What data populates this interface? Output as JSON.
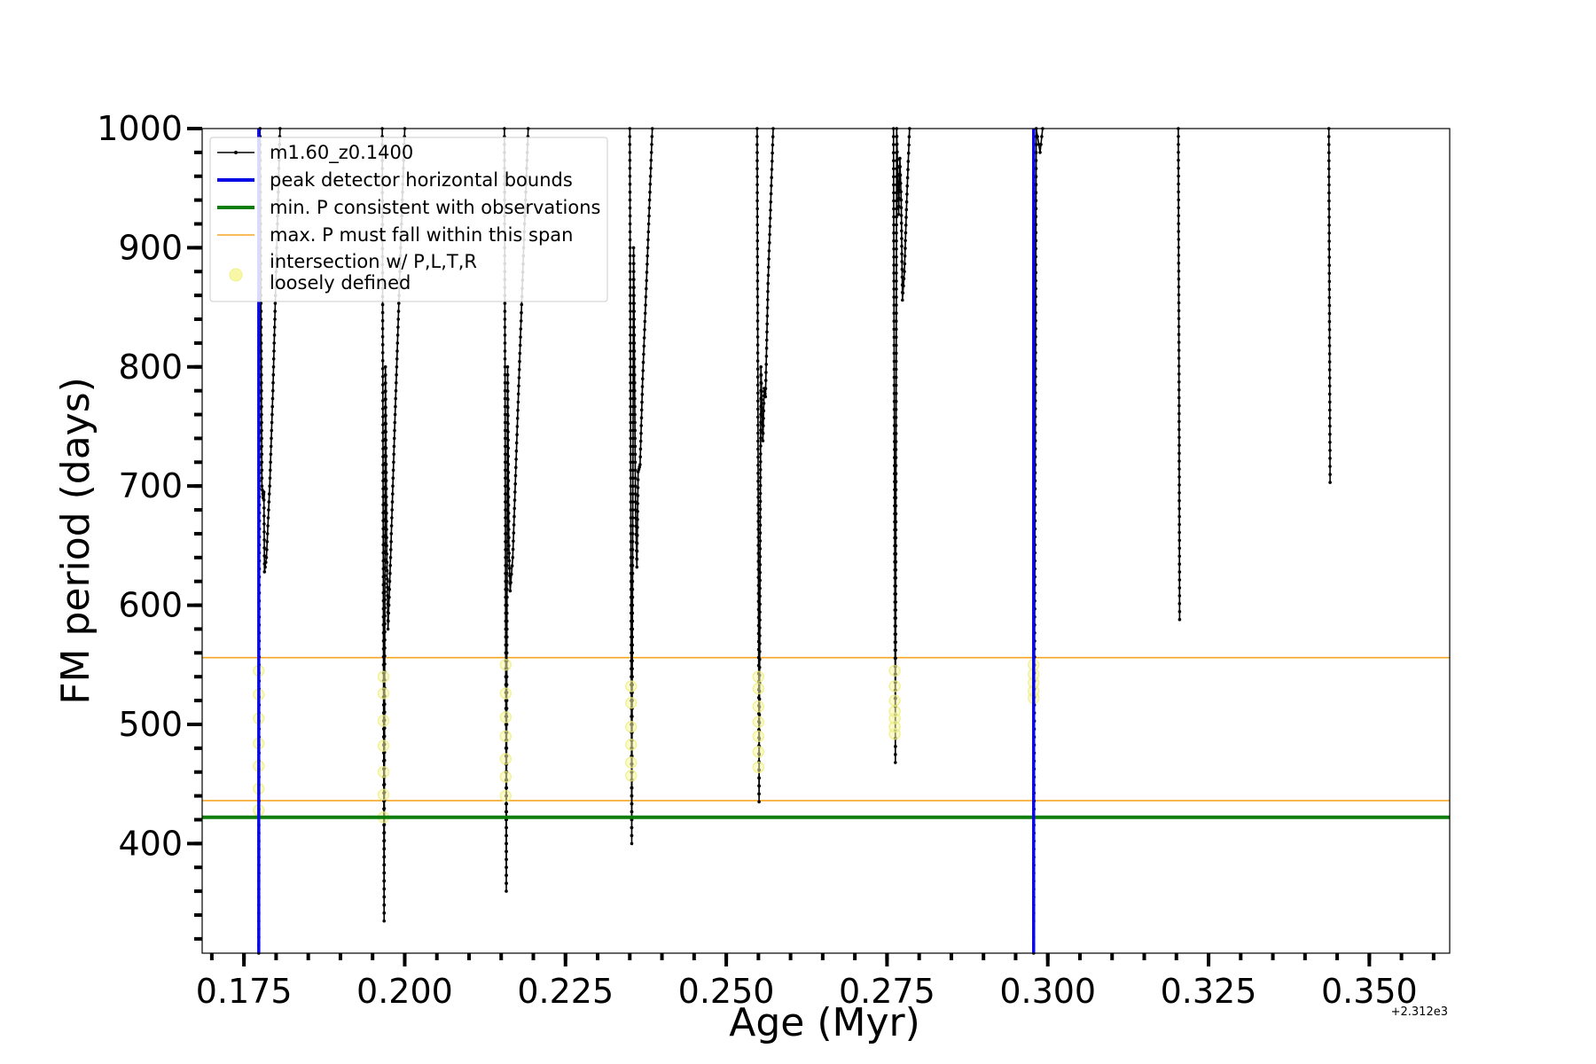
{
  "chart_data": {
    "type": "line",
    "xlabel": "Age (Myr)",
    "ylabel": "FM period (days)",
    "x_offset_label": "+2.312e3",
    "xlim": [
      0.1685,
      0.3625
    ],
    "ylim": [
      308,
      1000
    ],
    "x_ticks": [
      0.175,
      0.2,
      0.225,
      0.25,
      0.275,
      0.3,
      0.325,
      0.35
    ],
    "x_tick_labels": [
      "0.175",
      "0.200",
      "0.225",
      "0.250",
      "0.275",
      "0.300",
      "0.325",
      "0.350"
    ],
    "y_ticks": [
      400,
      500,
      600,
      700,
      800,
      900,
      1000
    ],
    "y_tick_labels": [
      "400",
      "500",
      "600",
      "700",
      "800",
      "900",
      "1000"
    ],
    "grid": false,
    "legend_position": "top-left",
    "legend": [
      {
        "label": "m1.60_z0.1400",
        "kind": "line-marker",
        "color": "#000000"
      },
      {
        "label": "peak detector horizontal bounds",
        "kind": "line",
        "color": "#0a0ae6"
      },
      {
        "label": "min. P consistent with observations",
        "kind": "line",
        "color": "#0a7d0a"
      },
      {
        "label": "max. P must fall within this span",
        "kind": "thin-line",
        "color": "#f5a623"
      },
      {
        "label": "intersection w/ P,L,T,R\nloosely defined",
        "kind": "circle",
        "color": "#f7f7a6"
      }
    ],
    "vertical_lines": {
      "color": "#0a0ae6",
      "x": [
        0.1773,
        0.2978
      ]
    },
    "min_period_line": {
      "color": "#0a7d0a",
      "y": 422
    },
    "max_period_span": {
      "color": "#f5a623",
      "y": [
        436,
        556
      ]
    },
    "series": [
      {
        "name": "m1.60_z0.1400",
        "color": "#000000",
        "segments": [
          [
            [
              0.1773,
              308
            ],
            [
              0.1775,
              1000
            ],
            [
              0.1778,
              700
            ],
            [
              0.178,
              690
            ],
            [
              0.1781,
              695
            ],
            [
              0.1782,
              628
            ],
            [
              0.1785,
              640
            ],
            [
              0.179,
              700
            ],
            [
              0.1795,
              780
            ],
            [
              0.18,
              880
            ],
            [
              0.1806,
              1000
            ]
          ],
          [
            [
              0.1965,
              1000
            ],
            [
              0.1968,
              335
            ],
            [
              0.197,
              800
            ],
            [
              0.1972,
              650
            ],
            [
              0.1974,
              580
            ],
            [
              0.1978,
              640
            ],
            [
              0.1985,
              760
            ],
            [
              0.1995,
              920
            ],
            [
              0.2,
              1000
            ]
          ],
          [
            [
              0.2155,
              1000
            ],
            [
              0.2158,
              360
            ],
            [
              0.216,
              800
            ],
            [
              0.2162,
              650
            ],
            [
              0.2164,
              612
            ],
            [
              0.2168,
              640
            ],
            [
              0.2175,
              750
            ],
            [
              0.2185,
              900
            ],
            [
              0.2192,
              1000
            ]
          ],
          [
            [
              0.235,
              1000
            ],
            [
              0.2353,
              400
            ],
            [
              0.2356,
              900
            ],
            [
              0.2359,
              680
            ],
            [
              0.2361,
              632
            ],
            [
              0.2363,
              712
            ],
            [
              0.2366,
              718
            ],
            [
              0.237,
              790
            ],
            [
              0.2378,
              900
            ],
            [
              0.2385,
              1000
            ]
          ],
          [
            [
              0.2548,
              1000
            ],
            [
              0.2551,
              435
            ],
            [
              0.2554,
              800
            ],
            [
              0.2557,
              738
            ],
            [
              0.2559,
              782
            ],
            [
              0.2561,
              775
            ],
            [
              0.2565,
              870
            ],
            [
              0.2573,
              1000
            ]
          ],
          [
            [
              0.276,
              1000
            ],
            [
              0.2763,
              468
            ],
            [
              0.2765,
              1000
            ],
            [
              0.2768,
              928
            ],
            [
              0.277,
              975
            ],
            [
              0.2772,
              940
            ],
            [
              0.2774,
              856
            ],
            [
              0.2777,
              880
            ],
            [
              0.2781,
              945
            ],
            [
              0.2785,
              1000
            ]
          ],
          [
            [
              0.2978,
              308
            ],
            [
              0.2982,
              1000
            ],
            [
              0.2988,
              980
            ],
            [
              0.2992,
              1000
            ]
          ],
          [
            [
              0.3203,
              1000
            ],
            [
              0.3205,
              588
            ]
          ],
          [
            [
              0.3437,
              1000
            ],
            [
              0.3439,
              703
            ]
          ]
        ]
      }
    ],
    "intersections": {
      "color": "#f7f7a6",
      "points": [
        {
          "x": 0.1773,
          "y": [
            428,
            446,
            465,
            484,
            505,
            525,
            545
          ]
        },
        {
          "x": 0.1967,
          "y": [
            422,
            441,
            460,
            482,
            503,
            526,
            540
          ]
        },
        {
          "x": 0.2157,
          "y": [
            440,
            456,
            471,
            490,
            506,
            526,
            550
          ]
        },
        {
          "x": 0.2352,
          "y": [
            457,
            468,
            483,
            498,
            518,
            532
          ]
        },
        {
          "x": 0.255,
          "y": [
            464,
            477,
            490,
            502,
            515,
            530,
            540
          ]
        },
        {
          "x": 0.2762,
          "y": [
            492,
            498,
            505,
            511,
            520,
            532,
            545
          ]
        },
        {
          "x": 0.2978,
          "y": [
            522,
            528,
            535,
            542,
            550
          ]
        }
      ]
    }
  }
}
